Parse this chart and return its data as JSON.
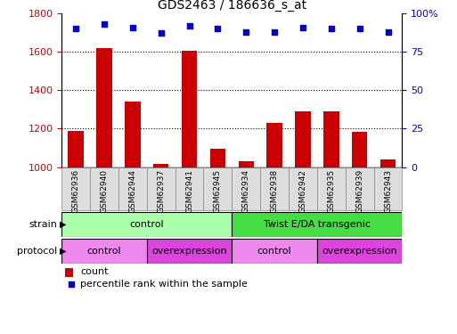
{
  "title": "GDS2463 / 186636_s_at",
  "samples": [
    "GSM62936",
    "GSM62940",
    "GSM62944",
    "GSM62937",
    "GSM62941",
    "GSM62945",
    "GSM62934",
    "GSM62938",
    "GSM62942",
    "GSM62935",
    "GSM62939",
    "GSM62943"
  ],
  "counts": [
    1190,
    1620,
    1340,
    1015,
    1605,
    1095,
    1030,
    1230,
    1290,
    1290,
    1185,
    1040
  ],
  "percentile_ranks": [
    90,
    93,
    91,
    87,
    92,
    90,
    88,
    88,
    91,
    90,
    90,
    88
  ],
  "ylim_left": [
    1000,
    1800
  ],
  "ylim_right": [
    0,
    100
  ],
  "yticks_left": [
    1000,
    1200,
    1400,
    1600,
    1800
  ],
  "yticks_right": [
    0,
    25,
    50,
    75,
    100
  ],
  "ytick_right_labels": [
    "0",
    "25",
    "50",
    "75",
    "100%"
  ],
  "bar_color": "#cc0000",
  "dot_color": "#0000cc",
  "strain_groups": [
    {
      "label": "control",
      "start": 0,
      "end": 6,
      "color": "#aaffaa"
    },
    {
      "label": "Twist E/DA transgenic",
      "start": 6,
      "end": 12,
      "color": "#44dd44"
    }
  ],
  "protocol_groups": [
    {
      "label": "control",
      "start": 0,
      "end": 3,
      "color": "#ee88ee"
    },
    {
      "label": "overexpression",
      "start": 3,
      "end": 6,
      "color": "#dd44dd"
    },
    {
      "label": "control",
      "start": 6,
      "end": 9,
      "color": "#ee88ee"
    },
    {
      "label": "overexpression",
      "start": 9,
      "end": 12,
      "color": "#dd44dd"
    }
  ],
  "legend_count_color": "#cc0000",
  "legend_pct_color": "#0000cc",
  "background_color": "#ffffff",
  "tick_label_color_left": "#cc0000",
  "tick_label_color_right": "#0000cc",
  "xticklabel_bg": "#dddddd",
  "xticklabel_border": "#888888"
}
